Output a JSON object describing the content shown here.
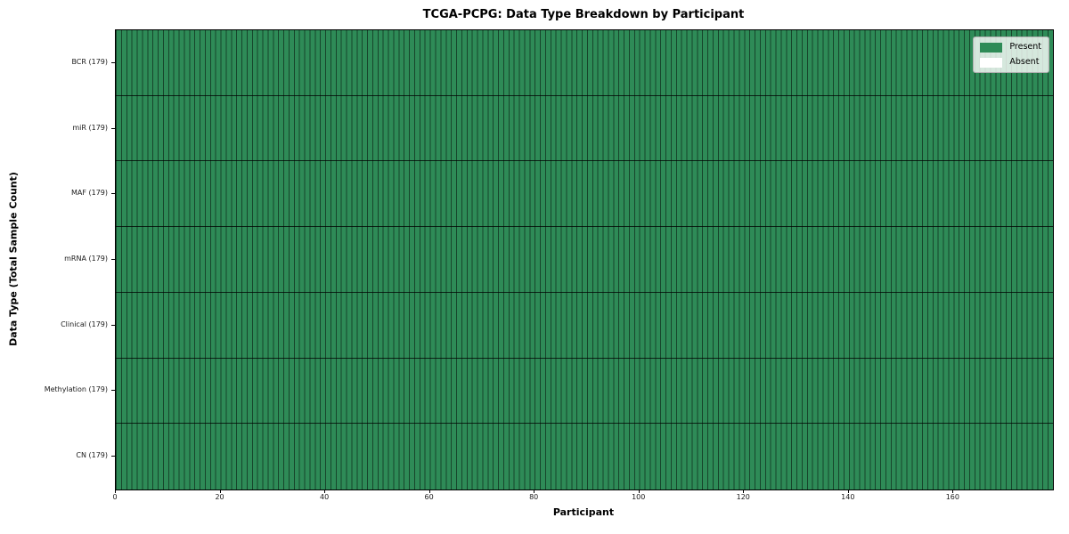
{
  "chart_data": {
    "type": "heatmap",
    "title": "TCGA-PCPG: Data Type Breakdown by Participant",
    "xlabel": "Participant",
    "ylabel": "Data Type (Total Sample Count)",
    "n_participants": 179,
    "xlim": [
      0,
      179
    ],
    "x_ticks": [
      0,
      20,
      40,
      60,
      80,
      100,
      120,
      140,
      160
    ],
    "rows": [
      {
        "label": "BCR (179)",
        "name": "BCR",
        "total_samples": 179,
        "present_count": 179,
        "absent_count": 0
      },
      {
        "label": "miR (179)",
        "name": "miR",
        "total_samples": 179,
        "present_count": 179,
        "absent_count": 0
      },
      {
        "label": "MAF (179)",
        "name": "MAF",
        "total_samples": 179,
        "present_count": 179,
        "absent_count": 0
      },
      {
        "label": "mRNA (179)",
        "name": "mRNA",
        "total_samples": 179,
        "present_count": 179,
        "absent_count": 0
      },
      {
        "label": "Clinical (179)",
        "name": "Clinical",
        "total_samples": 179,
        "present_count": 179,
        "absent_count": 0
      },
      {
        "label": "Methylation (179)",
        "name": "Methylation",
        "total_samples": 179,
        "present_count": 179,
        "absent_count": 0
      },
      {
        "label": "CN (179)",
        "name": "CN",
        "total_samples": 179,
        "present_count": 179,
        "absent_count": 0
      }
    ],
    "matrix_summary": "every cell is Present (value 1) for all 7 data types across all 179 participants",
    "legend": [
      {
        "label": "Present",
        "color": "#2e8b57"
      },
      {
        "label": "Absent",
        "color": "#ffffff"
      }
    ],
    "colors": {
      "present": "#2e8b57",
      "absent": "#ffffff",
      "column_line": "rgba(0,0,0,0.5)",
      "row_separator": "rgba(0,0,0,0.75)",
      "spine": "#000000"
    },
    "layout": {
      "grid": "cell edges drawn as thin dark lines",
      "legend_position": "upper right inside plot"
    }
  }
}
